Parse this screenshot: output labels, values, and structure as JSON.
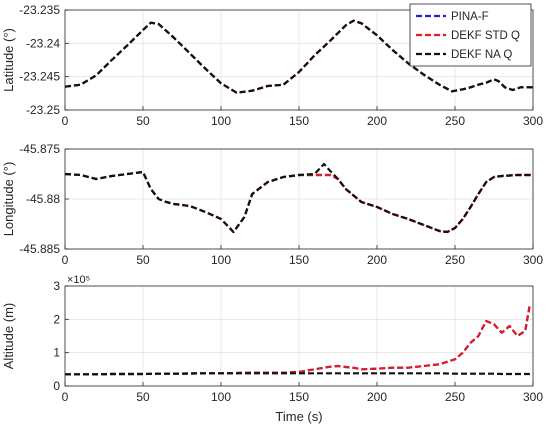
{
  "legend": {
    "entries": [
      "PINA-F",
      "DEKF STD Q",
      "DEKF NA Q"
    ],
    "colors": [
      "#1f1fdd",
      "#e41a1c",
      "#111111"
    ]
  },
  "chart_data": [
    {
      "type": "line",
      "xlabel": "",
      "ylabel": "Latitude (°)",
      "xlim": [
        0,
        300
      ],
      "ylim": [
        -23.25,
        -23.235
      ],
      "xticks": [
        "0",
        "50",
        "100",
        "150",
        "200",
        "250",
        "300"
      ],
      "yticks": [
        "-23.235",
        "-23.24",
        "-23.245",
        "-23.25"
      ],
      "x": [
        0,
        10,
        20,
        30,
        40,
        50,
        55,
        60,
        70,
        80,
        90,
        100,
        110,
        120,
        130,
        140,
        150,
        160,
        170,
        180,
        185,
        190,
        200,
        210,
        220,
        230,
        240,
        248,
        255,
        260,
        265,
        270,
        275,
        278,
        282,
        287,
        292,
        300
      ],
      "series": [
        {
          "name": "PINA-F",
          "values": [
            -23.2465,
            -23.2462,
            -23.2448,
            -23.2425,
            -23.2403,
            -23.238,
            -23.2369,
            -23.2371,
            -23.2392,
            -23.2415,
            -23.2438,
            -23.246,
            -23.2474,
            -23.2471,
            -23.2464,
            -23.2462,
            -23.2443,
            -23.2418,
            -23.2396,
            -23.2373,
            -23.2366,
            -23.237,
            -23.2388,
            -23.241,
            -23.243,
            -23.2447,
            -23.2462,
            -23.2472,
            -23.2469,
            -23.2466,
            -23.2462,
            -23.2459,
            -23.2454,
            -23.2457,
            -23.2466,
            -23.247,
            -23.2466,
            -23.2466
          ]
        },
        {
          "name": "DEKF STD Q",
          "values": [
            -23.2465,
            -23.2462,
            -23.2448,
            -23.2425,
            -23.2403,
            -23.238,
            -23.2369,
            -23.2371,
            -23.2392,
            -23.2415,
            -23.2438,
            -23.246,
            -23.2474,
            -23.2471,
            -23.2464,
            -23.2462,
            -23.2443,
            -23.2418,
            -23.2396,
            -23.2373,
            -23.2366,
            -23.237,
            -23.2388,
            -23.241,
            -23.243,
            -23.2447,
            -23.2462,
            -23.2472,
            -23.2469,
            -23.2466,
            -23.2462,
            -23.2459,
            -23.2454,
            -23.2457,
            -23.2466,
            -23.247,
            -23.2466,
            -23.2466
          ]
        },
        {
          "name": "DEKF NA Q",
          "values": [
            -23.2465,
            -23.2462,
            -23.2448,
            -23.2425,
            -23.2403,
            -23.238,
            -23.2369,
            -23.2371,
            -23.2392,
            -23.2415,
            -23.2438,
            -23.246,
            -23.2474,
            -23.2471,
            -23.2464,
            -23.2462,
            -23.2443,
            -23.2418,
            -23.2396,
            -23.2373,
            -23.2366,
            -23.237,
            -23.2388,
            -23.241,
            -23.243,
            -23.2447,
            -23.2462,
            -23.2472,
            -23.2469,
            -23.2466,
            -23.2462,
            -23.2459,
            -23.2454,
            -23.2457,
            -23.2466,
            -23.247,
            -23.2466,
            -23.2466
          ]
        }
      ]
    },
    {
      "type": "line",
      "xlabel": "",
      "ylabel": "Longitude (°)",
      "xlim": [
        0,
        300
      ],
      "ylim": [
        -45.885,
        -45.875
      ],
      "xticks": [
        "0",
        "50",
        "100",
        "150",
        "200",
        "250",
        "300"
      ],
      "yticks": [
        "-45.875",
        "-45.88",
        "-45.885"
      ],
      "x": [
        0,
        10,
        20,
        30,
        40,
        50,
        55,
        60,
        65,
        70,
        80,
        90,
        100,
        108,
        115,
        120,
        130,
        140,
        150,
        160,
        166,
        170,
        175,
        180,
        190,
        200,
        210,
        220,
        230,
        240,
        245,
        250,
        255,
        260,
        265,
        270,
        275,
        280,
        290,
        300
      ],
      "series": [
        {
          "name": "PINA-F",
          "values": [
            -45.8775,
            -45.8776,
            -45.878,
            -45.8777,
            -45.8775,
            -45.8773,
            -45.879,
            -45.88,
            -45.8803,
            -45.8805,
            -45.8807,
            -45.8813,
            -45.882,
            -45.8833,
            -45.8818,
            -45.8795,
            -45.8783,
            -45.8778,
            -45.8776,
            -45.8776,
            -45.8776,
            -45.8776,
            -45.878,
            -45.879,
            -45.8803,
            -45.8808,
            -45.8815,
            -45.882,
            -45.8826,
            -45.8832,
            -45.8833,
            -45.8829,
            -45.882,
            -45.8808,
            -45.8795,
            -45.8783,
            -45.8778,
            -45.8777,
            -45.8776,
            -45.8776
          ]
        },
        {
          "name": "DEKF STD Q",
          "values": [
            -45.8775,
            -45.8776,
            -45.878,
            -45.8777,
            -45.8775,
            -45.8773,
            -45.879,
            -45.88,
            -45.8803,
            -45.8805,
            -45.8807,
            -45.8813,
            -45.882,
            -45.8833,
            -45.8818,
            -45.8795,
            -45.8783,
            -45.8778,
            -45.8776,
            -45.8776,
            -45.8776,
            -45.8776,
            -45.878,
            -45.879,
            -45.8803,
            -45.8808,
            -45.8815,
            -45.882,
            -45.8826,
            -45.8832,
            -45.8833,
            -45.8829,
            -45.882,
            -45.8808,
            -45.8795,
            -45.8783,
            -45.8778,
            -45.8777,
            -45.8776,
            -45.8776
          ]
        },
        {
          "name": "DEKF NA Q",
          "values": [
            -45.8775,
            -45.8776,
            -45.878,
            -45.8777,
            -45.8775,
            -45.8773,
            -45.879,
            -45.88,
            -45.8803,
            -45.8805,
            -45.8807,
            -45.8813,
            -45.882,
            -45.8833,
            -45.8818,
            -45.8795,
            -45.8783,
            -45.8778,
            -45.8776,
            -45.8775,
            -45.8765,
            -45.8772,
            -45.878,
            -45.879,
            -45.8803,
            -45.8808,
            -45.8815,
            -45.882,
            -45.8826,
            -45.8832,
            -45.8833,
            -45.8829,
            -45.882,
            -45.8808,
            -45.8795,
            -45.8783,
            -45.8778,
            -45.8777,
            -45.8776,
            -45.8776
          ]
        }
      ]
    },
    {
      "type": "line",
      "xlabel": "Time (s)",
      "ylabel": "Altitude (m)",
      "exponent_label": "×10⁵",
      "xlim": [
        0,
        300
      ],
      "ylim": [
        0,
        300000
      ],
      "xticks": [
        "0",
        "50",
        "100",
        "150",
        "200",
        "250",
        "300"
      ],
      "yticks": [
        "3",
        "2",
        "1",
        "0"
      ],
      "x": [
        0,
        10,
        20,
        30,
        40,
        50,
        60,
        70,
        80,
        90,
        100,
        110,
        120,
        130,
        140,
        150,
        160,
        170,
        175,
        180,
        185,
        190,
        200,
        210,
        220,
        230,
        240,
        250,
        255,
        260,
        265,
        270,
        275,
        280,
        285,
        290,
        295,
        298
      ],
      "series": [
        {
          "name": "PINA-F",
          "values": [
            35000,
            35000,
            35000,
            36000,
            36000,
            36000,
            37000,
            37000,
            37500,
            38000,
            38000,
            39000,
            40000,
            40000,
            40000,
            42000,
            50000,
            58000,
            60000,
            57000,
            55000,
            50000,
            52000,
            55000,
            55000,
            60000,
            65000,
            80000,
            100000,
            130000,
            150000,
            195000,
            185000,
            160000,
            180000,
            150000,
            165000,
            245000
          ]
        },
        {
          "name": "DEKF STD Q",
          "values": [
            35000,
            35000,
            35000,
            36000,
            36000,
            36000,
            37000,
            37000,
            37500,
            38000,
            38000,
            39000,
            40000,
            40000,
            40000,
            42000,
            50000,
            58000,
            60000,
            57000,
            55000,
            50000,
            52000,
            55000,
            55000,
            60000,
            65000,
            80000,
            100000,
            130000,
            150000,
            195000,
            185000,
            160000,
            180000,
            150000,
            165000,
            245000
          ]
        },
        {
          "name": "DEKF NA Q",
          "values": [
            35000,
            35000,
            35000,
            36000,
            36000,
            36000,
            37000,
            37000,
            37500,
            38000,
            38000,
            38000,
            38000,
            38000,
            38000,
            38000,
            38000,
            38000,
            38000,
            38000,
            38000,
            38000,
            38000,
            38000,
            38000,
            38000,
            38000,
            37000,
            37000,
            37000,
            37000,
            37000,
            37000,
            36000,
            36000,
            36000,
            36000,
            36000
          ]
        }
      ]
    }
  ]
}
